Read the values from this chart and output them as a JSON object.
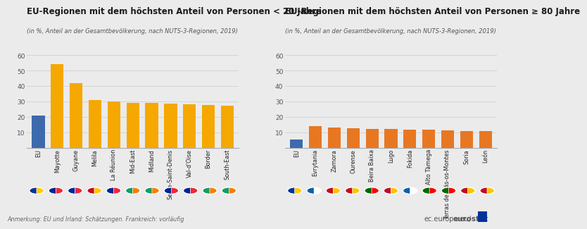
{
  "left_title": "EU-Regionen mit dem höchsten Anteil von Personen < 20 Jahre",
  "left_subtitle": "(in %, Anteil an der Gesamtbevölkerung, nach NUTS-3-Regionen, 2019)",
  "right_title": "EU-Regionen mit dem höchsten Anteil von Personen ≥ 80 Jahre",
  "right_subtitle": "(in %, Anteil an der Gesamtbevölkerung, nach NUTS-3-Regionen, 2019)",
  "left_categories": [
    "EU",
    "Mayotte",
    "Guyane",
    "Melila",
    "La Réunion",
    "Mid-East",
    "Midland",
    "Seine-Saint-Denis",
    "Val-d'Oise",
    "Border",
    "South-East"
  ],
  "left_values": [
    21.0,
    54.0,
    42.0,
    31.0,
    30.0,
    29.2,
    29.0,
    28.5,
    28.0,
    27.5,
    27.2
  ],
  "left_colors": [
    "#3d6aad",
    "#f5a800",
    "#f5a800",
    "#f5a800",
    "#f5a800",
    "#f5a800",
    "#f5a800",
    "#f5a800",
    "#f5a800",
    "#f5a800",
    "#f5a800"
  ],
  "left_ylim": [
    0,
    60
  ],
  "left_yticks": [
    0,
    10,
    20,
    30,
    40,
    50,
    60
  ],
  "right_categories": [
    "EU",
    "Evrytania",
    "Zamora",
    "Ourense",
    "Beira Baixa",
    "Lugo",
    "Fokida",
    "Alto Tàmega",
    "Terras de Trás-os-Montes",
    "Soria",
    "León"
  ],
  "right_values": [
    5.5,
    14.0,
    13.0,
    12.5,
    12.4,
    12.0,
    11.6,
    11.5,
    11.2,
    10.7,
    10.6
  ],
  "right_colors": [
    "#3d6aad",
    "#e87722",
    "#e87722",
    "#e87722",
    "#e87722",
    "#e87722",
    "#e87722",
    "#e87722",
    "#e87722",
    "#e87722",
    "#e87722"
  ],
  "right_ylim": [
    0,
    60
  ],
  "right_yticks": [
    0,
    10,
    20,
    30,
    40,
    50,
    60
  ],
  "bg_color": "#ebebeb",
  "annotation": "Anmerkung: EU und Irland: Schätzungen. Frankreich: vorläufig",
  "watermark": "ec.europa.eu/eurostat",
  "left_flag_left_colors": [
    "#003399",
    "#002395",
    "#002395",
    "#c60b1e",
    "#002395",
    "#169B62",
    "#169B62",
    "#002395",
    "#002395",
    "#169B62",
    "#169B62"
  ],
  "left_flag_right_colors": [
    "#ffcc00",
    "#ED2939",
    "#ED2939",
    "#ffc400",
    "#ED2939",
    "#f77f00",
    "#f77f00",
    "#ED2939",
    "#ED2939",
    "#f77f00",
    "#f77f00"
  ],
  "right_flag_left_colors": [
    "#003399",
    "#0D5EAF",
    "#c60b1e",
    "#c60b1e",
    "#006600",
    "#c60b1e",
    "#0D5EAF",
    "#006600",
    "#006600",
    "#c60b1e",
    "#c60b1e"
  ],
  "right_flag_right_colors": [
    "#ffcc00",
    "#FFFFFF",
    "#ffc400",
    "#ffc400",
    "#FF0000",
    "#ffc400",
    "#FFFFFF",
    "#FF0000",
    "#FF0000",
    "#ffc400",
    "#ffc400"
  ]
}
